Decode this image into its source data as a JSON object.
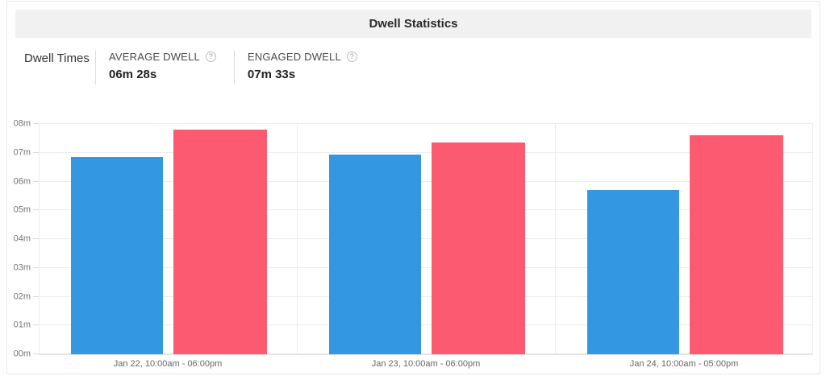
{
  "header": {
    "title": "Dwell Statistics"
  },
  "stats": {
    "section_label": "Dwell Times",
    "items": [
      {
        "label": "AVERAGE DWELL",
        "value": "06m 28s",
        "icon": "help-circle"
      },
      {
        "label": "ENGAGED DWELL",
        "value": "07m 33s",
        "icon": "help-circle"
      }
    ]
  },
  "icons": {
    "help": "?"
  },
  "chart_data": {
    "type": "bar",
    "title": "Dwell Statistics",
    "categories": [
      "Jan 22, 10:00am - 06:00pm",
      "Jan 23, 10:00am - 06:00pm",
      "Jan 24, 10:00am - 05:00pm"
    ],
    "series": [
      {
        "name": "Average Dwell",
        "color": "#3397e2",
        "values_minutes": [
          6.85,
          6.95,
          5.72
        ]
      },
      {
        "name": "Engaged Dwell",
        "color": "#fb5a71",
        "values_minutes": [
          7.8,
          7.35,
          7.62
        ]
      }
    ],
    "y_ticks": [
      "00m",
      "01m",
      "02m",
      "03m",
      "04m",
      "05m",
      "06m",
      "07m",
      "08m"
    ],
    "ylim": [
      0,
      8
    ],
    "y_unit": "minutes",
    "grid": true,
    "legend_position": "none"
  },
  "colors": {
    "header_bg": "#f1f1f1",
    "card_border": "#e7e7e7",
    "gridline": "#ececec",
    "average_bar": "#3397e2",
    "engaged_bar": "#fb5a71"
  }
}
